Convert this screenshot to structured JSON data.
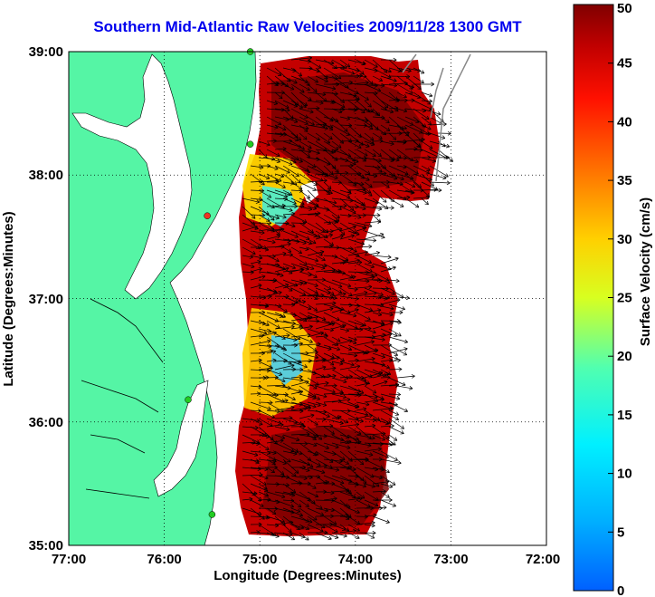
{
  "title": "Southern Mid-Atlantic Raw Velocities 2009/11/28 1300 GMT",
  "map": {
    "xlabel": "Longitude (Degrees:Minutes)",
    "ylabel": "Latitude (Degrees:Minutes)",
    "lon_ticks": [
      "77:00",
      "76:00",
      "75:00",
      "74:00",
      "73:00",
      "72:00"
    ],
    "lat_ticks": [
      "39:00",
      "38:00",
      "37:00",
      "36:00",
      "35:00"
    ],
    "lon_range": [
      -77,
      -72
    ],
    "lat_range": [
      35,
      39
    ],
    "land_color": "#55f5a5",
    "grid": "dotted"
  },
  "colorbar": {
    "label": "Surface Velocity (cm/s)",
    "ticks": [
      "50",
      "45",
      "40",
      "35",
      "30",
      "25",
      "20",
      "15",
      "10",
      "5",
      "0"
    ],
    "range": [
      0,
      50
    ],
    "colormap": "jet"
  },
  "stations": [
    {
      "color": "#22cc22",
      "lat": 39.0,
      "lon": -75.1
    },
    {
      "color": "#22cc22",
      "lat": 38.25,
      "lon": -75.1
    },
    {
      "color": "#ee3322",
      "lat": 37.67,
      "lon": -75.55
    },
    {
      "color": "#22cc22",
      "lat": 36.18,
      "lon": -75.75
    },
    {
      "color": "#22cc22",
      "lat": 35.25,
      "lon": -75.5
    }
  ]
}
